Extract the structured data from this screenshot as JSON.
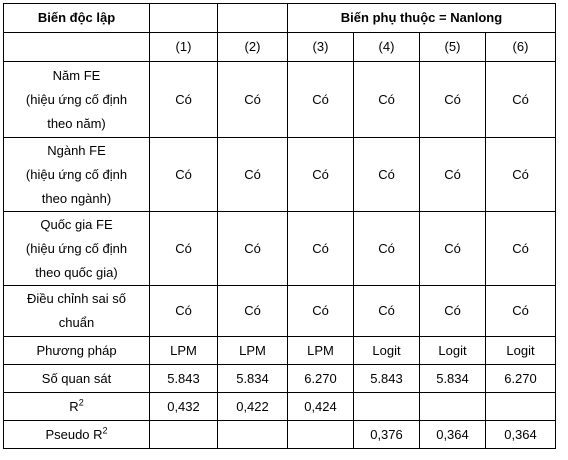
{
  "header": {
    "independent_label": "Biến độc lập",
    "dependent_label": "Biến phụ thuộc = Nanlong"
  },
  "columns": [
    "(1)",
    "(2)",
    "(3)",
    "(4)",
    "(5)",
    "(6)"
  ],
  "fe_rows": [
    {
      "lines": [
        "Năm FE",
        "(hiệu ứng cố định",
        "theo năm)"
      ],
      "values": [
        "Có",
        "Có",
        "Có",
        "Có",
        "Có",
        "Có"
      ]
    },
    {
      "lines": [
        "Ngành FE",
        "(hiệu ứng cố định",
        "theo ngành)"
      ],
      "values": [
        "Có",
        "Có",
        "Có",
        "Có",
        "Có",
        "Có"
      ]
    },
    {
      "lines": [
        "Quốc gia FE",
        "(hiệu ứng cố định",
        "theo quốc gia)"
      ],
      "values": [
        "Có",
        "Có",
        "Có",
        "Có",
        "Có",
        "Có"
      ]
    },
    {
      "lines": [
        "Điều chỉnh sai số",
        "chuẩn"
      ],
      "values": [
        "Có",
        "Có",
        "Có",
        "Có",
        "Có",
        "Có"
      ]
    }
  ],
  "method_row": {
    "label": "Phương pháp",
    "values": [
      "LPM",
      "LPM",
      "LPM",
      "Logit",
      "Logit",
      "Logit"
    ]
  },
  "obs_row": {
    "label": "Số quan sát",
    "values": [
      "5.843",
      "5.834",
      "6.270",
      "5.843",
      "5.834",
      "6.270"
    ]
  },
  "r2_row": {
    "label": "R",
    "sup": "2",
    "values": [
      "0,432",
      "0,422",
      "0,424",
      "",
      "",
      ""
    ]
  },
  "pseudo_row": {
    "label": "Pseudo R",
    "sup": "2",
    "values": [
      "",
      "",
      "",
      "0,376",
      "0,364",
      "0,364"
    ]
  }
}
